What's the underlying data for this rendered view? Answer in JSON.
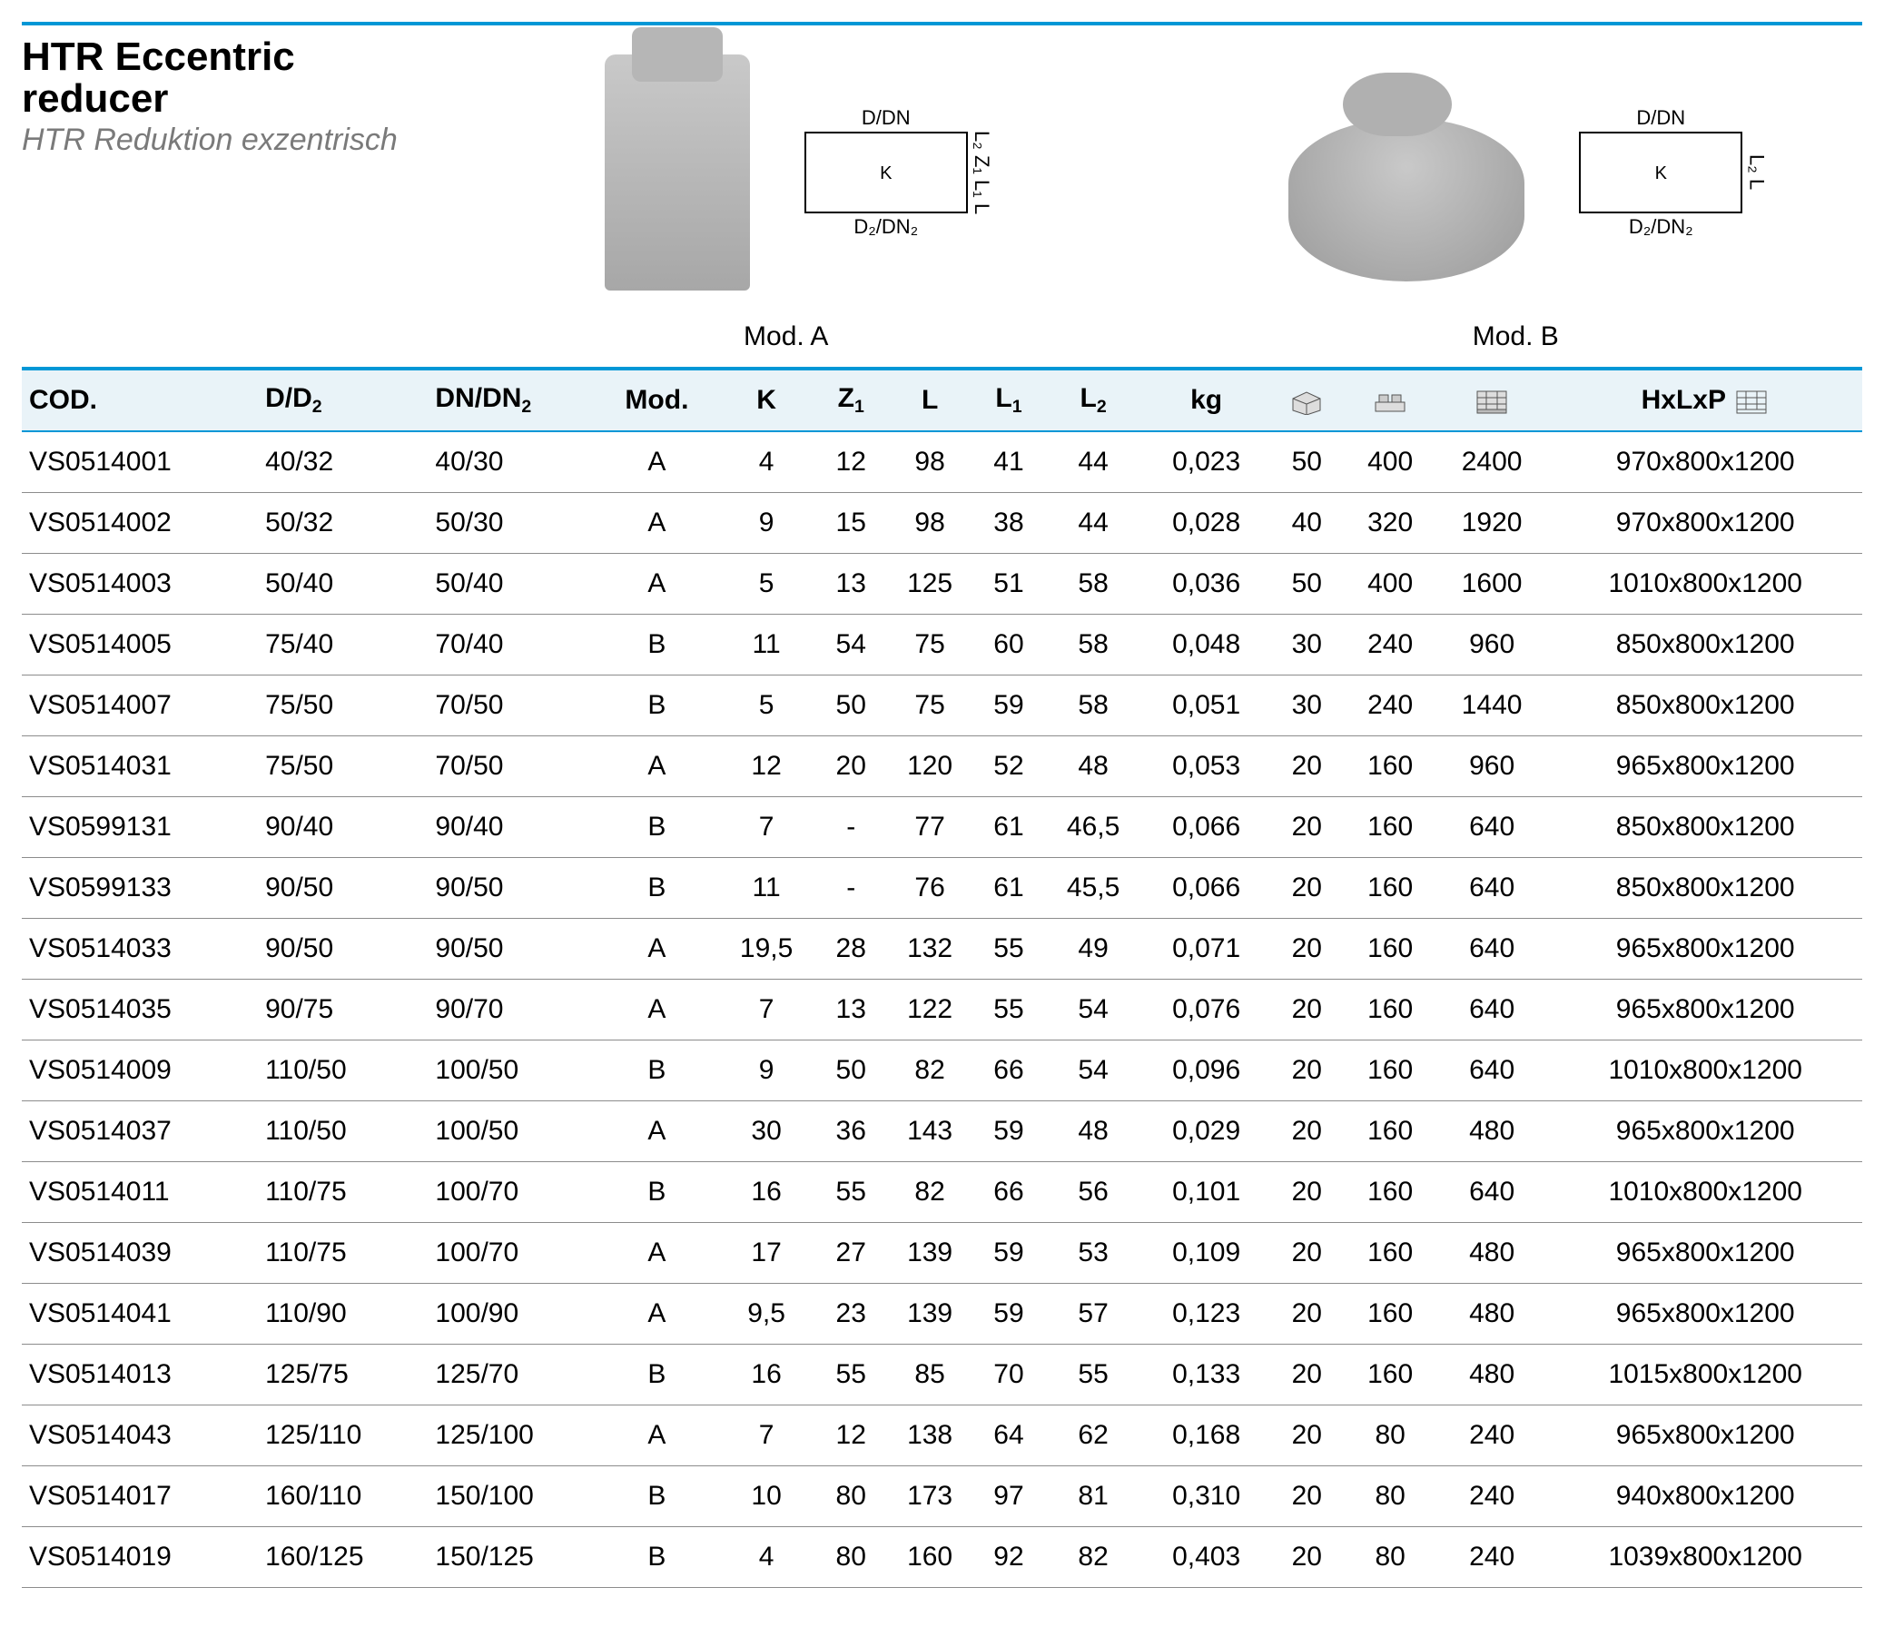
{
  "title": {
    "main": "HTR Eccentric reducer",
    "sub": "HTR Reduktion exzentrisch"
  },
  "models": {
    "a_label": "Mod. A",
    "b_label": "Mod. B",
    "dim_top": "D/DN",
    "dim_bottom_a": "D₂/DN₂",
    "dim_bottom_b": "D₂/DN₂",
    "dim_k": "K",
    "dim_L": "L",
    "dim_L1": "L₁",
    "dim_L2": "L₂",
    "dim_Z1": "Z₁"
  },
  "colors": {
    "accent": "#0097d6",
    "header_bg": "#e9f3f8",
    "row_border": "#8c8c8c",
    "subtitle": "#7a7a7a"
  },
  "table": {
    "columns": [
      "COD.",
      "D/D₂",
      "DN/DN₂",
      "Mod.",
      "K",
      "Z₁",
      "L",
      "L₁",
      "L₂",
      "kg",
      "box",
      "layer",
      "pallet",
      "HxLxP"
    ],
    "header_icons": {
      "box": "box-icon",
      "layer": "layer-icon",
      "pallet": "pallet-icon",
      "hxlxp": "pallet-outline-icon"
    },
    "rows": [
      [
        "VS0514001",
        "40/32",
        "40/30",
        "A",
        "4",
        "12",
        "98",
        "41",
        "44",
        "0,023",
        "50",
        "400",
        "2400",
        "970x800x1200"
      ],
      [
        "VS0514002",
        "50/32",
        "50/30",
        "A",
        "9",
        "15",
        "98",
        "38",
        "44",
        "0,028",
        "40",
        "320",
        "1920",
        "970x800x1200"
      ],
      [
        "VS0514003",
        "50/40",
        "50/40",
        "A",
        "5",
        "13",
        "125",
        "51",
        "58",
        "0,036",
        "50",
        "400",
        "1600",
        "1010x800x1200"
      ],
      [
        "VS0514005",
        "75/40",
        "70/40",
        "B",
        "11",
        "54",
        "75",
        "60",
        "58",
        "0,048",
        "30",
        "240",
        "960",
        "850x800x1200"
      ],
      [
        "VS0514007",
        "75/50",
        "70/50",
        "B",
        "5",
        "50",
        "75",
        "59",
        "58",
        "0,051",
        "30",
        "240",
        "1440",
        "850x800x1200"
      ],
      [
        "VS0514031",
        "75/50",
        "70/50",
        "A",
        "12",
        "20",
        "120",
        "52",
        "48",
        "0,053",
        "20",
        "160",
        "960",
        "965x800x1200"
      ],
      [
        "VS0599131",
        "90/40",
        "90/40",
        "B",
        "7",
        "-",
        "77",
        "61",
        "46,5",
        "0,066",
        "20",
        "160",
        "640",
        "850x800x1200"
      ],
      [
        "VS0599133",
        "90/50",
        "90/50",
        "B",
        "11",
        "-",
        "76",
        "61",
        "45,5",
        "0,066",
        "20",
        "160",
        "640",
        "850x800x1200"
      ],
      [
        "VS0514033",
        "90/50",
        "90/50",
        "A",
        "19,5",
        "28",
        "132",
        "55",
        "49",
        "0,071",
        "20",
        "160",
        "640",
        "965x800x1200"
      ],
      [
        "VS0514035",
        "90/75",
        "90/70",
        "A",
        "7",
        "13",
        "122",
        "55",
        "54",
        "0,076",
        "20",
        "160",
        "640",
        "965x800x1200"
      ],
      [
        "VS0514009",
        "110/50",
        "100/50",
        "B",
        "9",
        "50",
        "82",
        "66",
        "54",
        "0,096",
        "20",
        "160",
        "640",
        "1010x800x1200"
      ],
      [
        "VS0514037",
        "110/50",
        "100/50",
        "A",
        "30",
        "36",
        "143",
        "59",
        "48",
        "0,029",
        "20",
        "160",
        "480",
        "965x800x1200"
      ],
      [
        "VS0514011",
        "110/75",
        "100/70",
        "B",
        "16",
        "55",
        "82",
        "66",
        "56",
        "0,101",
        "20",
        "160",
        "640",
        "1010x800x1200"
      ],
      [
        "VS0514039",
        "110/75",
        "100/70",
        "A",
        "17",
        "27",
        "139",
        "59",
        "53",
        "0,109",
        "20",
        "160",
        "480",
        "965x800x1200"
      ],
      [
        "VS0514041",
        "110/90",
        "100/90",
        "A",
        "9,5",
        "23",
        "139",
        "59",
        "57",
        "0,123",
        "20",
        "160",
        "480",
        "965x800x1200"
      ],
      [
        "VS0514013",
        "125/75",
        "125/70",
        "B",
        "16",
        "55",
        "85",
        "70",
        "55",
        "0,133",
        "20",
        "160",
        "480",
        "1015x800x1200"
      ],
      [
        "VS0514043",
        "125/110",
        "125/100",
        "A",
        "7",
        "12",
        "138",
        "64",
        "62",
        "0,168",
        "20",
        "80",
        "240",
        "965x800x1200"
      ],
      [
        "VS0514017",
        "160/110",
        "150/100",
        "B",
        "10",
        "80",
        "173",
        "97",
        "81",
        "0,310",
        "20",
        "80",
        "240",
        "940x800x1200"
      ],
      [
        "VS0514019",
        "160/125",
        "150/125",
        "B",
        "4",
        "80",
        "160",
        "92",
        "82",
        "0,403",
        "20",
        "80",
        "240",
        "1039x800x1200"
      ]
    ]
  }
}
